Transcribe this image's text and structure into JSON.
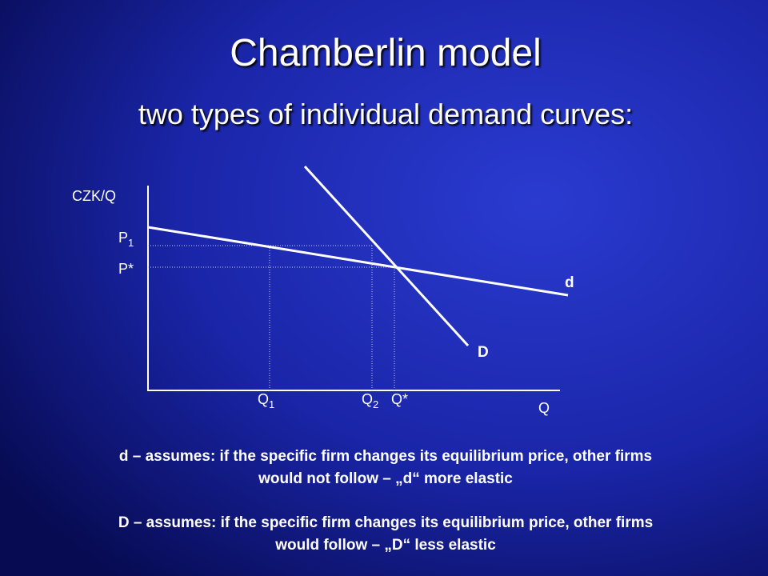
{
  "title": "Chamberlin model",
  "subtitle": "two types of individual demand curves:",
  "diagram": {
    "y_axis_label": "CZK/Q",
    "x_axis_label": "Q",
    "price_labels": [
      {
        "base": "P",
        "sub": "1"
      },
      "P*"
    ],
    "quantity_labels": [
      {
        "base": "Q",
        "sub": "1"
      },
      {
        "base": "Q",
        "sub": "2"
      },
      "Q*"
    ],
    "curve_labels": [
      "d",
      "D"
    ]
  },
  "notes": [
    [
      "d – assumes: if the specific firm changes its equilibrium price, other firms",
      "would not follow – „d“ more elastic"
    ],
    [
      "D – assumes: if the specific firm changes its equilibrium price, other firms",
      "would follow – „D“ less elastic"
    ]
  ]
}
